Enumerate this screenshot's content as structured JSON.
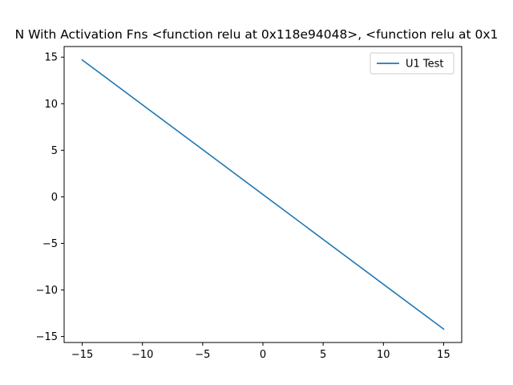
{
  "chart_data": {
    "type": "line",
    "title": "N With Activation Fns <function relu at 0x118e94048>, <function relu at 0x1",
    "xlabel": "",
    "ylabel": "",
    "xlim": [
      -16.5,
      16.5
    ],
    "ylim": [
      -15.64,
      16.14
    ],
    "xticks": [
      -15,
      -10,
      -5,
      0,
      5,
      10,
      15
    ],
    "yticks": [
      -15,
      -10,
      -5,
      0,
      5,
      10,
      15
    ],
    "xtick_labels": [
      "−15",
      "−10",
      "−5",
      "0",
      "5",
      "10",
      "15"
    ],
    "ytick_labels": [
      "−15",
      "−10",
      "−5",
      "0",
      "5",
      "10",
      "15"
    ],
    "grid": false,
    "legend_position": "top-right",
    "series": [
      {
        "name": "U1 Test",
        "color": "#1f77b4",
        "x": [
          -15,
          15
        ],
        "y": [
          14.7,
          -14.2
        ]
      }
    ]
  }
}
